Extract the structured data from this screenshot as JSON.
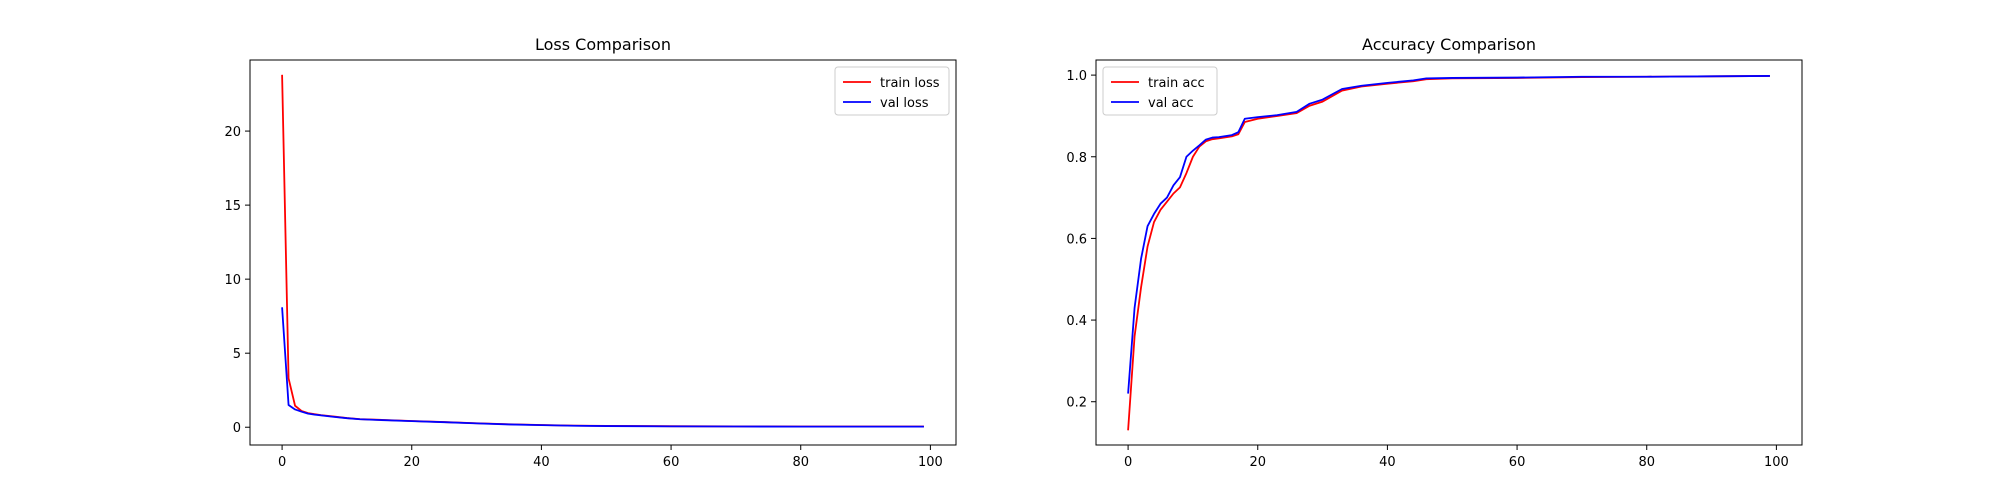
{
  "chart_data": [
    {
      "type": "line",
      "title": "Loss Comparison",
      "xlabel": "",
      "ylabel": "",
      "xlim": [
        -4.95,
        103.95
      ],
      "ylim": [
        -1.2,
        24.8
      ],
      "xticks": [
        0,
        20,
        40,
        60,
        80,
        100
      ],
      "yticks": [
        0,
        5,
        10,
        15,
        20
      ],
      "legend_position": "top-right",
      "series": [
        {
          "name": "train loss",
          "color": "#ff0000",
          "x": [
            0,
            1,
            2,
            3,
            4,
            5,
            6,
            8,
            10,
            12,
            15,
            20,
            25,
            30,
            35,
            40,
            45,
            50,
            60,
            70,
            80,
            90,
            99
          ],
          "y": [
            23.8,
            3.3,
            1.45,
            1.1,
            0.95,
            0.88,
            0.82,
            0.72,
            0.62,
            0.55,
            0.5,
            0.42,
            0.35,
            0.27,
            0.2,
            0.15,
            0.11,
            0.09,
            0.07,
            0.06,
            0.05,
            0.05,
            0.05
          ]
        },
        {
          "name": "val loss",
          "color": "#0000ff",
          "x": [
            0,
            1,
            2,
            3,
            4,
            5,
            6,
            8,
            10,
            12,
            15,
            20,
            25,
            30,
            35,
            40,
            45,
            50,
            60,
            70,
            80,
            90,
            99
          ],
          "y": [
            8.1,
            1.5,
            1.2,
            1.05,
            0.92,
            0.85,
            0.8,
            0.7,
            0.61,
            0.54,
            0.49,
            0.41,
            0.34,
            0.26,
            0.19,
            0.14,
            0.1,
            0.08,
            0.06,
            0.05,
            0.04,
            0.04,
            0.04
          ]
        }
      ]
    },
    {
      "type": "line",
      "title": "Accuracy Comparison",
      "xlabel": "",
      "ylabel": "",
      "xlim": [
        -4.95,
        103.95
      ],
      "ylim": [
        0.094,
        1.037
      ],
      "xticks": [
        0,
        20,
        40,
        60,
        80,
        100
      ],
      "yticks": [
        0.2,
        0.4,
        0.6,
        0.8,
        1.0
      ],
      "legend_position": "top-left",
      "series": [
        {
          "name": "train acc",
          "color": "#ff0000",
          "x": [
            0,
            1,
            2,
            3,
            4,
            5,
            6,
            7,
            8,
            9,
            10,
            11,
            12,
            13,
            14,
            16,
            17,
            18,
            20,
            23,
            26,
            28,
            30,
            33,
            36,
            40,
            44,
            46,
            50,
            60,
            70,
            80,
            90,
            99
          ],
          "y": [
            0.13,
            0.36,
            0.48,
            0.58,
            0.64,
            0.67,
            0.69,
            0.71,
            0.725,
            0.76,
            0.8,
            0.825,
            0.838,
            0.843,
            0.845,
            0.85,
            0.855,
            0.885,
            0.893,
            0.9,
            0.907,
            0.925,
            0.935,
            0.962,
            0.972,
            0.979,
            0.985,
            0.99,
            0.992,
            0.993,
            0.995,
            0.996,
            0.997,
            0.998
          ]
        },
        {
          "name": "val acc",
          "color": "#0000ff",
          "x": [
            0,
            1,
            2,
            3,
            4,
            5,
            6,
            7,
            8,
            9,
            10,
            11,
            12,
            13,
            14,
            16,
            17,
            18,
            20,
            23,
            26,
            28,
            30,
            33,
            36,
            40,
            44,
            46,
            50,
            60,
            70,
            80,
            90,
            99
          ],
          "y": [
            0.22,
            0.43,
            0.55,
            0.63,
            0.66,
            0.685,
            0.7,
            0.73,
            0.75,
            0.8,
            0.815,
            0.828,
            0.842,
            0.847,
            0.848,
            0.853,
            0.86,
            0.893,
            0.897,
            0.902,
            0.91,
            0.93,
            0.94,
            0.966,
            0.974,
            0.981,
            0.987,
            0.992,
            0.993,
            0.994,
            0.996,
            0.996,
            0.997,
            0.998
          ]
        }
      ]
    }
  ]
}
